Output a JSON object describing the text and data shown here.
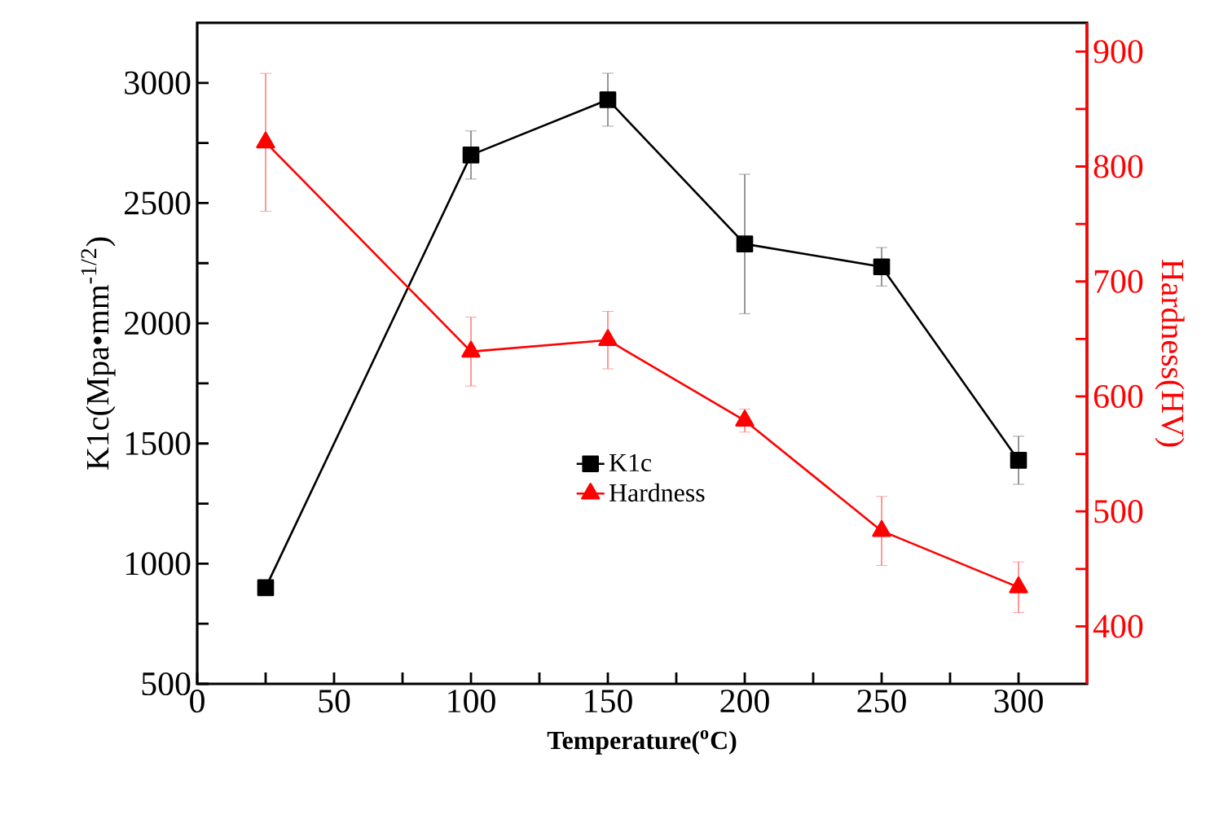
{
  "chart_data": {
    "type": "line",
    "xlabel": "Temperature($^{o}$C)",
    "ylabel": "K1c(Mpa•mm$^{-1/2}$)",
    "y2label": "Hardness(HV)",
    "x": [
      25,
      100,
      150,
      200,
      250,
      300
    ],
    "series": [
      {
        "name": "K1c",
        "color": "#000000",
        "marker": "square",
        "values": [
          900,
          2700,
          2930,
          2330,
          2235,
          1430
        ],
        "errors": [
          null,
          100,
          110,
          290,
          80,
          100
        ]
      },
      {
        "name": "Hardness",
        "color": "#ff0000",
        "marker": "triangle",
        "axis": "y2",
        "values": [
          821,
          639,
          649,
          579,
          483,
          434
        ],
        "errors": [
          60,
          30,
          25,
          10,
          30,
          22
        ]
      }
    ],
    "xlim": [
      0,
      325
    ],
    "ylim": [
      500,
      3250
    ],
    "y2lim": [
      350,
      925
    ],
    "xticks": [
      0,
      {
        "value": 25,
        "label": null
      },
      50,
      {
        "value": 75,
        "label": null
      },
      100,
      {
        "value": 125,
        "label": null
      },
      150,
      {
        "value": 175,
        "label": null
      },
      200,
      {
        "value": 225,
        "label": null
      },
      250,
      {
        "value": 275,
        "label": null
      },
      300
    ],
    "yticks": [
      500,
      {
        "value": 750,
        "label": null
      },
      1000,
      {
        "value": 1250,
        "label": null
      },
      1500,
      {
        "value": 1750,
        "label": null
      },
      2000,
      {
        "value": 2250,
        "label": null
      },
      2500,
      {
        "value": 2750,
        "label": null
      },
      3000
    ],
    "y2ticks": [
      400,
      {
        "value": 450,
        "label": null
      },
      500,
      {
        "value": 550,
        "label": null
      },
      600,
      {
        "value": 650,
        "label": null
      },
      700,
      {
        "value": 750,
        "label": null
      },
      800,
      {
        "value": 850,
        "label": null
      },
      900
    ],
    "legend": "center",
    "grid": false
  }
}
